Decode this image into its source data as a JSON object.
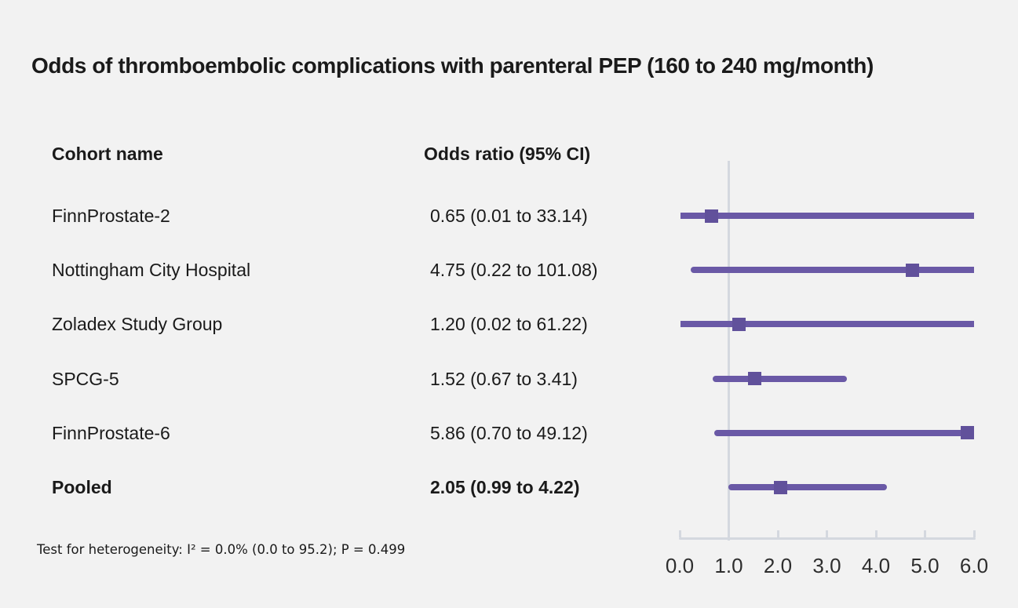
{
  "title": "Odds of thromboembolic complications with parenteral PEP (160 to 240 mg/month)",
  "table": {
    "cohort_header": "Cohort name",
    "or_header": "Odds ratio (95% CI)"
  },
  "footnote": "Test for heterogeneity: I² = 0.0% (0.0 to 95.2); P = 0.499",
  "chart_data": {
    "type": "scatter",
    "subtype": "forest-plot",
    "xlim": [
      0,
      6
    ],
    "tick_labels": [
      "0.0",
      "1.0",
      "2.0",
      "3.0",
      "4.0",
      "5.0",
      "6.0"
    ],
    "tick_values": [
      0,
      1,
      2,
      3,
      4,
      5,
      6
    ],
    "reference_line_x": 1.0,
    "grid": false,
    "legend": false,
    "rows": [
      {
        "name": "FinnProstate-2",
        "or": 0.65,
        "ci_low": 0.01,
        "ci_high": 33.14,
        "display": "0.65 (0.01 to 33.14)",
        "bold": false
      },
      {
        "name": "Nottingham City Hospital",
        "or": 4.75,
        "ci_low": 0.22,
        "ci_high": 101.08,
        "display": "4.75 (0.22 to 101.08)",
        "bold": false
      },
      {
        "name": "Zoladex Study Group",
        "or": 1.2,
        "ci_low": 0.02,
        "ci_high": 61.22,
        "display": "1.20 (0.02 to 61.22)",
        "bold": false
      },
      {
        "name": "SPCG-5",
        "or": 1.52,
        "ci_low": 0.67,
        "ci_high": 3.41,
        "display": "1.52 (0.67 to 3.41)",
        "bold": false
      },
      {
        "name": "FinnProstate-6",
        "or": 5.86,
        "ci_low": 0.7,
        "ci_high": 49.12,
        "display": "5.86 (0.70 to 49.12)",
        "bold": false
      },
      {
        "name": "Pooled",
        "or": 2.05,
        "ci_low": 0.99,
        "ci_high": 4.22,
        "display": "2.05 (0.99 to 4.22)",
        "bold": true
      }
    ]
  },
  "colors": {
    "background": "#f2f2f2",
    "ci_line": "#6a59a6",
    "marker": "#61519b",
    "axis": "#d4d8df",
    "text": "#1a1a1a"
  }
}
